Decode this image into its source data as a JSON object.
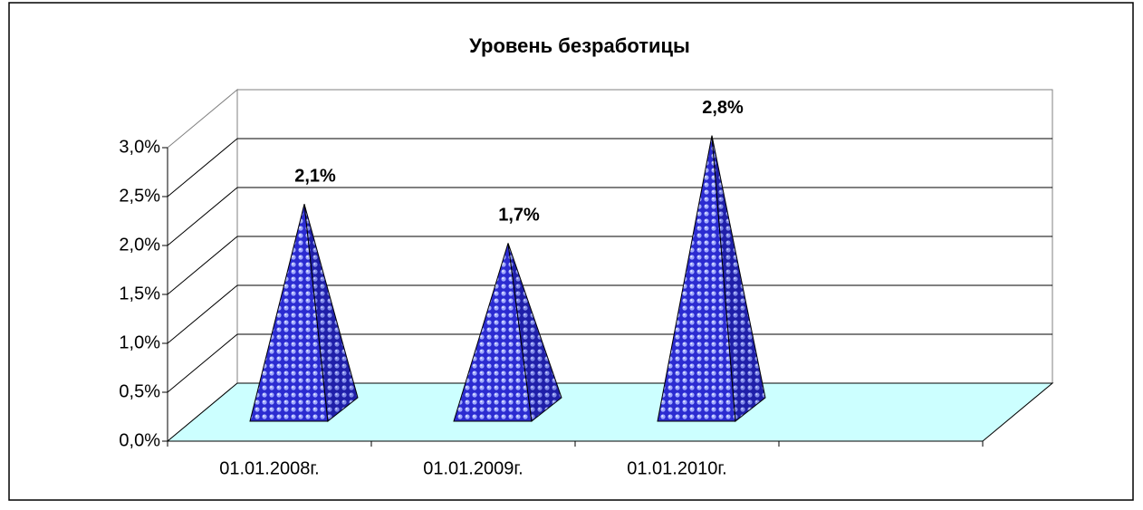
{
  "chart_data": {
    "type": "pyramid3d",
    "title": "Уровень безработицы",
    "categories": [
      "01.01.2008г.",
      "01.01.2009г.",
      "01.01.2010г.",
      null
    ],
    "values": [
      2.1,
      1.7,
      2.8,
      null
    ],
    "value_labels": [
      "2,1%",
      "1,7%",
      "2,8%",
      null
    ],
    "color": "#3333cc",
    "ylim": [
      0,
      3
    ],
    "yticks": [
      {
        "value": 0,
        "label": "0,0%"
      },
      {
        "value": 0.5,
        "label": "0,5%"
      },
      {
        "value": 1,
        "label": "1,0%"
      },
      {
        "value": 1.5,
        "label": "1,5%"
      },
      {
        "value": 2,
        "label": "2,0%"
      },
      {
        "value": 2.5,
        "label": "2,5%"
      },
      {
        "value": 3,
        "label": "3,0%"
      }
    ],
    "grid": true
  }
}
